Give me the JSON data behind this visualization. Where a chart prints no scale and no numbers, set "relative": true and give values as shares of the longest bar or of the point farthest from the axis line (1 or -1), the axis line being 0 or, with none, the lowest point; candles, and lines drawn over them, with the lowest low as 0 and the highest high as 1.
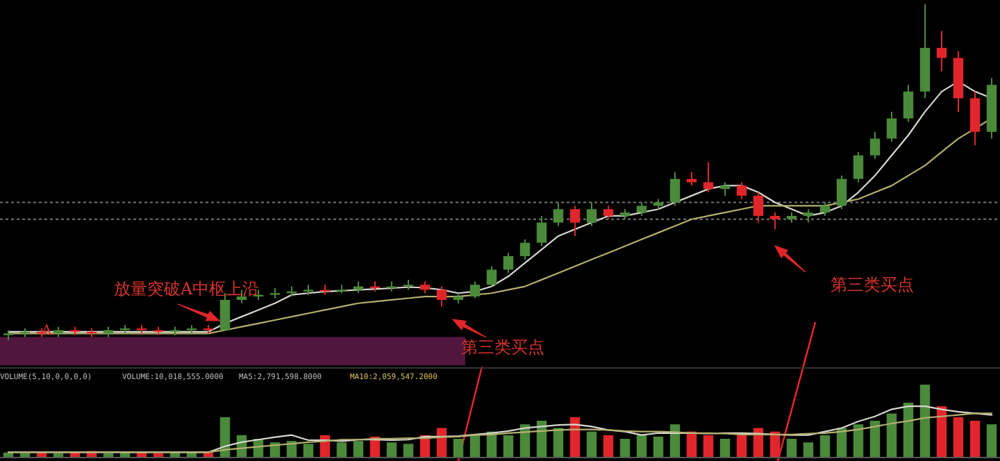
{
  "chart_data": [
    {
      "type": "candlestick",
      "relative": true,
      "categories": [
        null,
        null,
        null,
        null,
        null,
        null,
        null,
        null,
        null,
        null,
        null,
        null,
        null,
        null,
        null,
        null,
        null,
        null,
        null,
        null,
        null,
        null,
        null,
        null,
        null,
        null,
        null,
        null,
        null,
        null,
        null,
        null,
        null,
        null,
        null,
        null,
        null,
        null,
        null,
        null,
        null,
        null,
        null,
        null,
        null,
        null,
        null,
        null,
        null,
        null,
        null,
        null,
        null,
        null,
        null,
        null,
        null,
        null,
        null,
        null
      ],
      "ohlc": [
        [
          0.015,
          0.03,
          0,
          0.02
        ],
        [
          0.02,
          0.035,
          0.01,
          0.025
        ],
        [
          0.025,
          0.035,
          0.01,
          0.02
        ],
        [
          0.02,
          0.04,
          0.01,
          0.03
        ],
        [
          0.03,
          0.04,
          0.015,
          0.025
        ],
        [
          0.025,
          0.035,
          0.01,
          0.02
        ],
        [
          0.02,
          0.04,
          0.01,
          0.03
        ],
        [
          0.03,
          0.045,
          0.02,
          0.035
        ],
        [
          0.035,
          0.045,
          0.02,
          0.03
        ],
        [
          0.03,
          0.04,
          0.015,
          0.025
        ],
        [
          0.025,
          0.04,
          0.015,
          0.03
        ],
        [
          0.03,
          0.045,
          0.02,
          0.035
        ],
        [
          0.035,
          0.045,
          0.02,
          0.03
        ],
        [
          0.03,
          0.14,
          0.03,
          0.12
        ],
        [
          0.12,
          0.15,
          0.11,
          0.13
        ],
        [
          0.13,
          0.15,
          0.12,
          0.135
        ],
        [
          0.135,
          0.155,
          0.125,
          0.14
        ],
        [
          0.14,
          0.16,
          0.13,
          0.145
        ],
        [
          0.145,
          0.165,
          0.135,
          0.15
        ],
        [
          0.15,
          0.165,
          0.135,
          0.145
        ],
        [
          0.145,
          0.165,
          0.14,
          0.15
        ],
        [
          0.15,
          0.175,
          0.14,
          0.16
        ],
        [
          0.16,
          0.175,
          0.145,
          0.155
        ],
        [
          0.155,
          0.175,
          0.145,
          0.16
        ],
        [
          0.16,
          0.18,
          0.15,
          0.165
        ],
        [
          0.165,
          0.175,
          0.14,
          0.15
        ],
        [
          0.15,
          0.16,
          0.1,
          0.12
        ],
        [
          0.12,
          0.14,
          0.11,
          0.13
        ],
        [
          0.13,
          0.175,
          0.125,
          0.165
        ],
        [
          0.165,
          0.22,
          0.16,
          0.21
        ],
        [
          0.21,
          0.26,
          0.2,
          0.25
        ],
        [
          0.25,
          0.3,
          0.24,
          0.29
        ],
        [
          0.29,
          0.37,
          0.28,
          0.35
        ],
        [
          0.35,
          0.41,
          0.34,
          0.39
        ],
        [
          0.39,
          0.4,
          0.31,
          0.35
        ],
        [
          0.35,
          0.41,
          0.34,
          0.39
        ],
        [
          0.39,
          0.4,
          0.36,
          0.37
        ],
        [
          0.37,
          0.39,
          0.36,
          0.38
        ],
        [
          0.38,
          0.41,
          0.37,
          0.4
        ],
        [
          0.4,
          0.42,
          0.39,
          0.41
        ],
        [
          0.41,
          0.5,
          0.4,
          0.48
        ],
        [
          0.48,
          0.5,
          0.46,
          0.47
        ],
        [
          0.47,
          0.53,
          0.44,
          0.45
        ],
        [
          0.45,
          0.47,
          0.43,
          0.46
        ],
        [
          0.46,
          0.47,
          0.42,
          0.43
        ],
        [
          0.43,
          0.44,
          0.35,
          0.37
        ],
        [
          0.37,
          0.38,
          0.33,
          0.36
        ],
        [
          0.36,
          0.38,
          0.35,
          0.37
        ],
        [
          0.37,
          0.39,
          0.35,
          0.38
        ],
        [
          0.38,
          0.41,
          0.37,
          0.4
        ],
        [
          0.4,
          0.49,
          0.39,
          0.48
        ],
        [
          0.48,
          0.56,
          0.47,
          0.55
        ],
        [
          0.55,
          0.62,
          0.54,
          0.6
        ],
        [
          0.6,
          0.68,
          0.59,
          0.66
        ],
        [
          0.66,
          0.76,
          0.65,
          0.74
        ],
        [
          0.74,
          1,
          0.72,
          0.87
        ],
        [
          0.87,
          0.92,
          0.8,
          0.84
        ],
        [
          0.84,
          0.86,
          0.68,
          0.72
        ],
        [
          0.72,
          0.74,
          0.58,
          0.62
        ],
        [
          0.62,
          0.78,
          0.6,
          0.76
        ]
      ],
      "colors": [
        "#4a8a3a",
        "#4a8a3a",
        "#e0262b",
        "#4a8a3a",
        "#e0262b",
        "#e0262b",
        "#4a8a3a",
        "#4a8a3a",
        "#e0262b",
        "#e0262b",
        "#4a8a3a",
        "#4a8a3a",
        "#e0262b",
        "#4a8a3a",
        "#4a8a3a",
        "#4a8a3a",
        "#4a8a3a",
        "#4a8a3a",
        "#4a8a3a",
        "#e0262b",
        "#4a8a3a",
        "#4a8a3a",
        "#e0262b",
        "#4a8a3a",
        "#4a8a3a",
        "#e0262b",
        "#e0262b",
        "#4a8a3a",
        "#4a8a3a",
        "#4a8a3a",
        "#4a8a3a",
        "#4a8a3a",
        "#4a8a3a",
        "#4a8a3a",
        "#e0262b",
        "#4a8a3a",
        "#e0262b",
        "#4a8a3a",
        "#4a8a3a",
        "#4a8a3a",
        "#4a8a3a",
        "#e0262b",
        "#e0262b",
        "#4a8a3a",
        "#e0262b",
        "#e0262b",
        "#e0262b",
        "#4a8a3a",
        "#4a8a3a",
        "#4a8a3a",
        "#4a8a3a",
        "#4a8a3a",
        "#4a8a3a",
        "#4a8a3a",
        "#4a8a3a",
        "#4a8a3a",
        "#e0262b",
        "#e0262b",
        "#e0262b",
        "#4a8a3a"
      ],
      "series": [
        {
          "type": "line",
          "color": "#d8d8d0",
          "values": [
            0.025,
            0.025,
            0.025,
            0.025,
            0.025,
            0.025,
            0.025,
            0.025,
            0.025,
            0.025,
            0.025,
            0.025,
            0.025,
            0.05,
            0.07,
            0.09,
            0.11,
            0.135,
            0.14,
            0.145,
            0.147,
            0.15,
            0.152,
            0.155,
            0.158,
            0.156,
            0.15,
            0.14,
            0.145,
            0.16,
            0.19,
            0.23,
            0.27,
            0.31,
            0.33,
            0.35,
            0.37,
            0.37,
            0.38,
            0.39,
            0.41,
            0.43,
            0.45,
            0.46,
            0.46,
            0.44,
            0.41,
            0.39,
            0.37,
            0.38,
            0.4,
            0.44,
            0.49,
            0.55,
            0.61,
            0.68,
            0.74,
            0.77,
            0.74,
            0.72
          ]
        },
        {
          "type": "line",
          "color": "#b5b070",
          "values": [
            0.02,
            0.02,
            0.02,
            0.02,
            0.02,
            0.02,
            0.02,
            0.02,
            0.02,
            0.02,
            0.02,
            0.02,
            0.02,
            0.03,
            0.04,
            0.05,
            0.06,
            0.07,
            0.08,
            0.09,
            0.1,
            0.11,
            0.115,
            0.12,
            0.125,
            0.13,
            0.13,
            0.13,
            0.135,
            0.14,
            0.15,
            0.16,
            0.18,
            0.2,
            0.22,
            0.24,
            0.26,
            0.28,
            0.3,
            0.32,
            0.34,
            0.36,
            0.37,
            0.38,
            0.39,
            0.4,
            0.4,
            0.4,
            0.4,
            0.4,
            0.41,
            0.42,
            0.44,
            0.46,
            0.49,
            0.52,
            0.56,
            0.6,
            0.63,
            0.66
          ]
        }
      ],
      "ref_lines": [
        {
          "axis": "y",
          "value": 0.41,
          "color": "#777777",
          "line_style": "dotted"
        },
        {
          "axis": "y",
          "value": 0.36,
          "color": "#777777",
          "line_style": "dotted"
        }
      ],
      "bands": [
        {
          "axis": "y",
          "from": -0.075,
          "to": 0.01,
          "color": "#5e1a48"
        }
      ],
      "annotations": [
        "放量突破A中枢上沿",
        "A",
        "第三类买点",
        "第三类买点"
      ]
    },
    {
      "type": "bar",
      "relative": true,
      "categories": [
        null,
        null,
        null,
        null,
        null,
        null,
        null,
        null,
        null,
        null,
        null,
        null,
        null,
        null,
        null,
        null,
        null,
        null,
        null,
        null,
        null,
        null,
        null,
        null,
        null,
        null,
        null,
        null,
        null,
        null,
        null,
        null,
        null,
        null,
        null,
        null,
        null,
        null,
        null,
        null,
        null,
        null,
        null,
        null,
        null,
        null,
        null,
        null,
        null,
        null,
        null,
        null,
        null,
        null,
        null,
        null,
        null,
        null,
        null,
        null
      ],
      "values": [
        0.06,
        0.05,
        0.07,
        0.05,
        0.06,
        0.08,
        0.05,
        0.06,
        0.07,
        0.05,
        0.06,
        0.07,
        0.06,
        0.55,
        0.3,
        0.25,
        0.2,
        0.22,
        0.18,
        0.3,
        0.2,
        0.22,
        0.28,
        0.2,
        0.18,
        0.3,
        0.4,
        0.25,
        0.3,
        0.35,
        0.3,
        0.45,
        0.5,
        0.4,
        0.55,
        0.35,
        0.3,
        0.25,
        0.3,
        0.28,
        0.45,
        0.35,
        0.3,
        0.25,
        0.3,
        0.4,
        0.35,
        0.25,
        0.2,
        0.3,
        0.4,
        0.45,
        0.5,
        0.6,
        0.75,
        1,
        0.7,
        0.55,
        0.5,
        0.45
      ],
      "colors": [
        "#4a8a3a",
        "#4a8a3a",
        "#e0262b",
        "#4a8a3a",
        "#e0262b",
        "#e0262b",
        "#4a8a3a",
        "#4a8a3a",
        "#e0262b",
        "#e0262b",
        "#4a8a3a",
        "#4a8a3a",
        "#e0262b",
        "#4a8a3a",
        "#4a8a3a",
        "#4a8a3a",
        "#4a8a3a",
        "#4a8a3a",
        "#4a8a3a",
        "#e0262b",
        "#4a8a3a",
        "#4a8a3a",
        "#e0262b",
        "#4a8a3a",
        "#4a8a3a",
        "#e0262b",
        "#e0262b",
        "#4a8a3a",
        "#4a8a3a",
        "#4a8a3a",
        "#4a8a3a",
        "#4a8a3a",
        "#4a8a3a",
        "#4a8a3a",
        "#e0262b",
        "#4a8a3a",
        "#e0262b",
        "#4a8a3a",
        "#4a8a3a",
        "#4a8a3a",
        "#4a8a3a",
        "#e0262b",
        "#e0262b",
        "#4a8a3a",
        "#e0262b",
        "#e0262b",
        "#e0262b",
        "#4a8a3a",
        "#4a8a3a",
        "#4a8a3a",
        "#4a8a3a",
        "#4a8a3a",
        "#4a8a3a",
        "#4a8a3a",
        "#4a8a3a",
        "#4a8a3a",
        "#e0262b",
        "#e0262b",
        "#e0262b",
        "#4a8a3a"
      ],
      "annotations": [
        "VOLUME(5,10,0,0,0,0)",
        "VOLUME:10,018,555.0000",
        "MA5:2,791,598.8000",
        "MA10:2,059,547.2000"
      ]
    },
    {
      "type": "line",
      "relative": true,
      "categories": [
        null,
        null,
        null,
        null,
        null,
        null,
        null,
        null,
        null,
        null,
        null,
        null,
        null,
        null,
        null,
        null,
        null,
        null,
        null,
        null,
        null,
        null,
        null,
        null,
        null,
        null,
        null,
        null,
        null,
        null,
        null,
        null,
        null,
        null,
        null,
        null,
        null,
        null,
        null,
        null,
        null,
        null,
        null,
        null,
        null,
        null,
        null,
        null,
        null,
        null,
        null,
        null,
        null,
        null,
        null,
        null,
        null,
        null,
        null,
        null
      ],
      "series": [
        {
          "color": "#d8d8d0",
          "values": [
            0.09,
            0.09,
            0.09,
            0.09,
            0.09,
            0.09,
            0.09,
            0.09,
            0.09,
            0.09,
            0.09,
            0.09,
            0.09,
            0.21,
            0.29,
            0.34,
            0.39,
            0.43,
            0.33,
            0.33,
            0.31,
            0.34,
            0.34,
            0.33,
            0.34,
            0.4,
            0.4,
            0.41,
            0.44,
            0.47,
            0.51,
            0.57,
            0.6,
            0.63,
            0.64,
            0.6,
            0.53,
            0.5,
            0.43,
            0.47,
            0.47,
            0.47,
            0.46,
            0.47,
            0.47,
            0.46,
            0.44,
            0.43,
            0.43,
            0.5,
            0.57,
            0.7,
            0.8,
            0.94,
            1,
            1,
            0.94,
            0.89,
            0.86,
            0.83
          ]
        },
        {
          "color": "#b5b070",
          "values": [
            0.09,
            0.09,
            0.09,
            0.09,
            0.09,
            0.09,
            0.09,
            0.09,
            0.09,
            0.09,
            0.09,
            0.09,
            0.09,
            0.14,
            0.17,
            0.2,
            0.23,
            0.26,
            0.29,
            0.31,
            0.34,
            0.34,
            0.36,
            0.36,
            0.37,
            0.37,
            0.39,
            0.4,
            0.43,
            0.44,
            0.47,
            0.49,
            0.51,
            0.53,
            0.54,
            0.54,
            0.53,
            0.51,
            0.5,
            0.5,
            0.49,
            0.47,
            0.47,
            0.46,
            0.44,
            0.44,
            0.44,
            0.44,
            0.46,
            0.47,
            0.5,
            0.54,
            0.6,
            0.66,
            0.71,
            0.77,
            0.8,
            0.83,
            0.86,
            0.86
          ]
        }
      ]
    }
  ]
}
